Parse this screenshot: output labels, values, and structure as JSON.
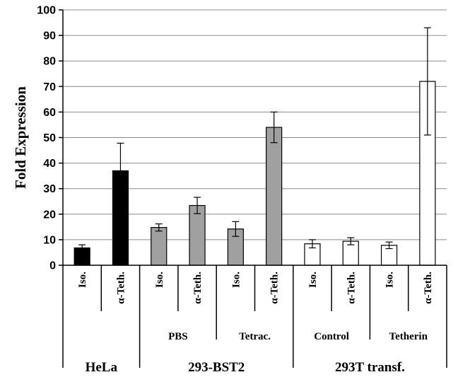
{
  "chart_data": {
    "type": "bar",
    "title": "",
    "xlabel": "",
    "ylabel": "Fold Expression",
    "ylim": [
      0,
      100
    ],
    "yticks": [
      0,
      10,
      20,
      30,
      40,
      50,
      60,
      70,
      80,
      90,
      100
    ],
    "grid": true,
    "categories": [
      "Iso.",
      "α-Teth.",
      "Iso.",
      "α-Teth.",
      "Iso.",
      "α-Teth.",
      "Iso.",
      "α-Teth.",
      "Iso.",
      "α-Teth."
    ],
    "values": [
      6.8,
      37,
      14.8,
      23.4,
      14.2,
      54,
      8.4,
      9.4,
      7.8,
      72
    ],
    "errors": [
      1.2,
      10.8,
      1.4,
      3.2,
      2.9,
      6,
      1.6,
      1.4,
      1.3,
      21
    ],
    "colors": [
      "#000000",
      "#000000",
      "#a0a0a0",
      "#a0a0a0",
      "#a0a0a0",
      "#a0a0a0",
      "#ffffff",
      "#ffffff",
      "#ffffff",
      "#ffffff"
    ],
    "subgroups": [
      {
        "label": "PBS",
        "from": 2,
        "to": 3
      },
      {
        "label": "Tetrac.",
        "from": 4,
        "to": 5
      },
      {
        "label": "Control",
        "from": 6,
        "to": 7
      },
      {
        "label": "Tetherin",
        "from": 8,
        "to": 9
      }
    ],
    "groups": [
      {
        "label": "HeLa",
        "from": 0,
        "to": 1
      },
      {
        "label": "293-BST2",
        "from": 2,
        "to": 5
      },
      {
        "label": "293T transf.",
        "from": 6,
        "to": 9
      }
    ]
  }
}
